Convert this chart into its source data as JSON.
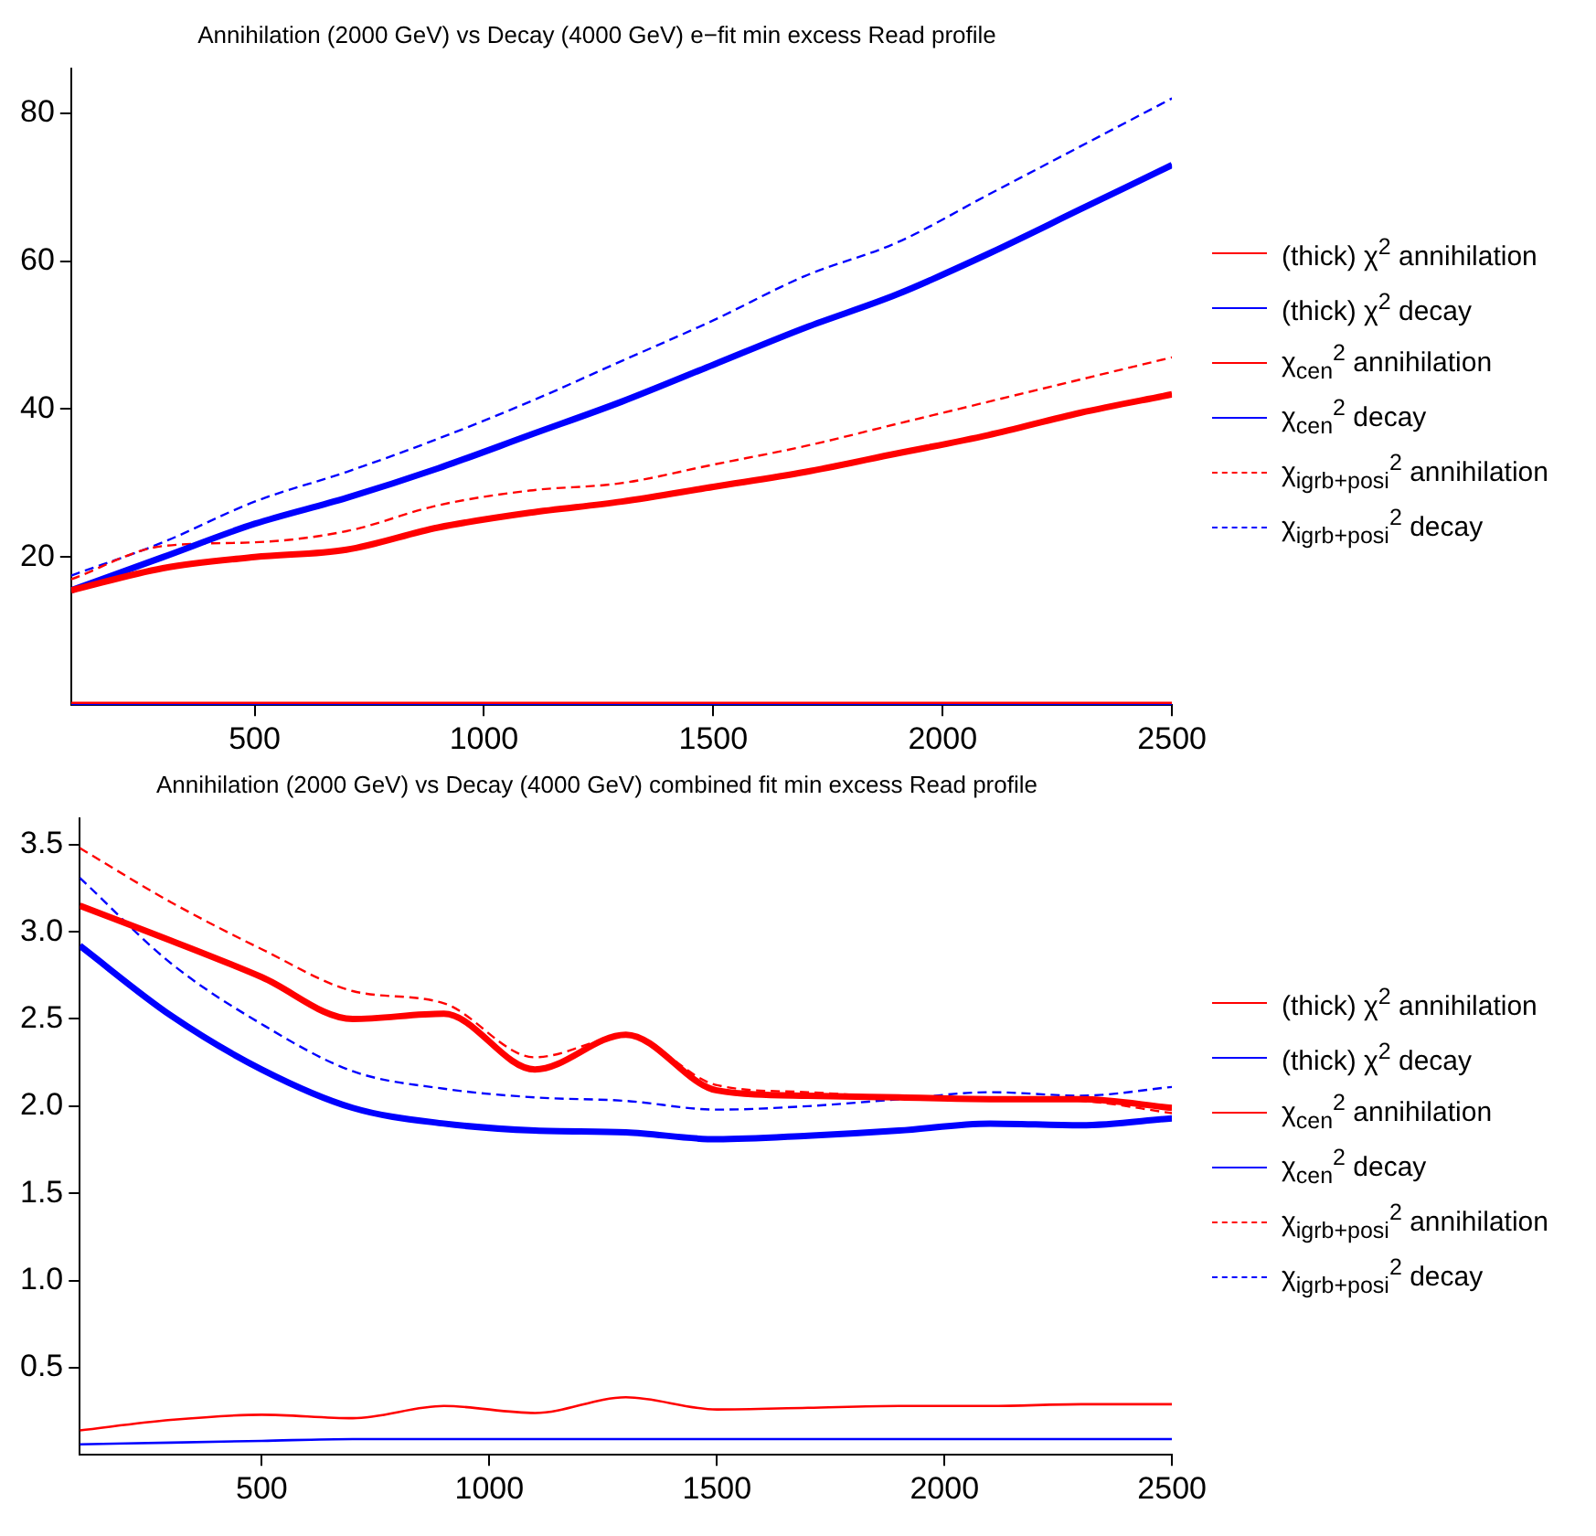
{
  "chart_data": [
    {
      "type": "line",
      "title": "Annihilation (2000 GeV) vs Decay (4000 GeV) e−fit min excess Read profile",
      "x": [
        100,
        300,
        500,
        700,
        900,
        1100,
        1300,
        1500,
        1700,
        1900,
        2100,
        2300,
        2500
      ],
      "xlim": [
        100,
        2500
      ],
      "xticks": [
        500,
        1000,
        1500,
        2000,
        2500
      ],
      "ylim": [
        0,
        86
      ],
      "yticks": [
        20,
        40,
        60,
        80
      ],
      "grid": false,
      "legend": "right",
      "marker": "none",
      "series": [
        {
          "name": "(thick) χ$^{2}$ annihilation",
          "color": "#ff0000",
          "line_style": "solid",
          "values": [
            15.5,
            18.5,
            20,
            21,
            24,
            26,
            27.5,
            29.5,
            31.5,
            34,
            36.5,
            39.5,
            42
          ]
        },
        {
          "name": "(thick) χ$^{2}$ decay",
          "color": "#0000ff",
          "line_style": "solid",
          "values": [
            15.5,
            20,
            24.5,
            28,
            32,
            36.5,
            41,
            46,
            51,
            55.5,
            61,
            67,
            73
          ]
        },
        {
          "name": "χ$_{cen}$$^{2}$ annihilation",
          "color": "#ff0000",
          "line_style": "solid",
          "values": [
            0.3,
            0.3,
            0.3,
            0.3,
            0.3,
            0.3,
            0.3,
            0.3,
            0.3,
            0.3,
            0.3,
            0.3,
            0.3
          ]
        },
        {
          "name": "χ$_{cen}$$^{2}$ decay",
          "color": "#0000ff",
          "line_style": "solid",
          "values": [
            0.1,
            0.1,
            0.1,
            0.1,
            0.1,
            0.1,
            0.1,
            0.1,
            0.1,
            0.1,
            0.1,
            0.1,
            0.1
          ]
        },
        {
          "name": "χ$_{igrb+posi}$$^{2}$ annihilation",
          "color": "#ff0000",
          "line_style": "dashed",
          "values": [
            17,
            21.5,
            22,
            23.5,
            27,
            29,
            30,
            32.5,
            35,
            38,
            41,
            44,
            47
          ]
        },
        {
          "name": "χ$_{igrb+posi}$$^{2}$ decay",
          "color": "#0000ff",
          "line_style": "dashed",
          "values": [
            17.5,
            22,
            27.5,
            31.5,
            36,
            41,
            46.5,
            52,
            58,
            62.5,
            69,
            75.5,
            82
          ]
        }
      ]
    },
    {
      "type": "line",
      "title": "Annihilation (2000 GeV) vs Decay (4000 GeV) combined fit min excess Read profile",
      "x": [
        100,
        300,
        500,
        700,
        900,
        1100,
        1300,
        1500,
        1700,
        1900,
        2100,
        2300,
        2500
      ],
      "xlim": [
        100,
        2500
      ],
      "xticks": [
        500,
        1000,
        1500,
        2000,
        2500
      ],
      "ylim": [
        0,
        3.65
      ],
      "yticks": [
        0.5,
        {
          "value": 1,
          "label": "1.0"
        },
        1.5,
        {
          "value": 2,
          "label": "2.0"
        },
        2.5,
        {
          "value": 3,
          "label": "3.0"
        },
        3.5
      ],
      "grid": false,
      "legend": "right",
      "marker": "none",
      "series": [
        {
          "name": "(thick) χ$^{2}$ annihilation",
          "color": "#ff0000",
          "line_style": "solid",
          "values": [
            3.15,
            2.95,
            2.74,
            2.5,
            2.53,
            2.21,
            2.41,
            2.09,
            2.06,
            2.05,
            2.04,
            2.04,
            1.99
          ]
        },
        {
          "name": "(thick) χ$^{2}$ decay",
          "color": "#0000ff",
          "line_style": "solid",
          "values": [
            2.92,
            2.52,
            2.21,
            1.99,
            1.9,
            1.86,
            1.85,
            1.81,
            1.83,
            1.86,
            1.9,
            1.89,
            1.93
          ]
        },
        {
          "name": "χ$_{cen}$$^{2}$ annihilation",
          "color": "#ff0000",
          "line_style": "solid",
          "values": [
            0.14,
            0.2,
            0.23,
            0.21,
            0.28,
            0.24,
            0.33,
            0.26,
            0.27,
            0.28,
            0.28,
            0.29,
            0.29
          ]
        },
        {
          "name": "χ$_{cen}$$^{2}$ decay",
          "color": "#0000ff",
          "line_style": "solid",
          "values": [
            0.06,
            0.07,
            0.08,
            0.09,
            0.09,
            0.09,
            0.09,
            0.09,
            0.09,
            0.09,
            0.09,
            0.09,
            0.09
          ]
        },
        {
          "name": "χ$_{igrb+posi}$$^{2}$ annihilation",
          "color": "#ff0000",
          "line_style": "dashed",
          "values": [
            3.48,
            3.17,
            2.9,
            2.66,
            2.59,
            2.28,
            2.4,
            2.12,
            2.08,
            2.05,
            2.04,
            2.03,
            1.96
          ]
        },
        {
          "name": "χ$_{igrb+posi}$$^{2}$ decay",
          "color": "#0000ff",
          "line_style": "dashed",
          "values": [
            3.31,
            2.82,
            2.47,
            2.2,
            2.1,
            2.05,
            2.03,
            1.98,
            2.0,
            2.04,
            2.08,
            2.06,
            2.11
          ]
        }
      ]
    }
  ]
}
